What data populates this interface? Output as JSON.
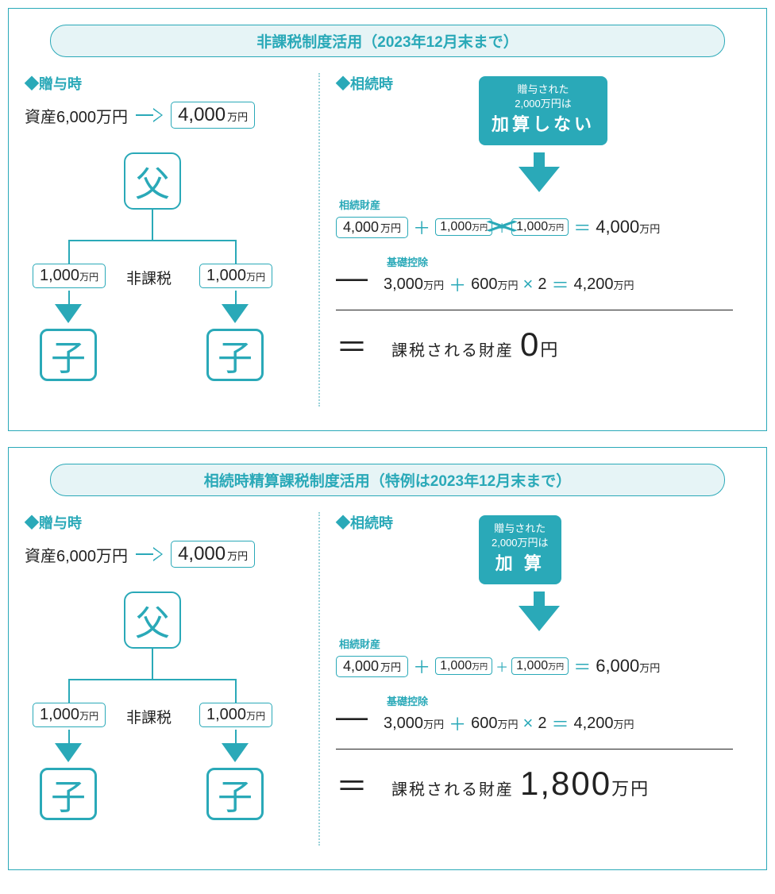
{
  "colors": {
    "accent": "#2aa9b8",
    "bg_light": "#e6f4f6",
    "text": "#222"
  },
  "panels": [
    {
      "title": "非課税制度活用（2023年12月末まで）",
      "left": {
        "heading": "◆贈与時",
        "asset_label": "資産6,000万円",
        "asset_after": "4,000",
        "asset_unit": "万円",
        "father": "父",
        "child": "子",
        "gift_amt": "1,000",
        "gift_unit": "万円",
        "nontax": "非課税"
      },
      "right": {
        "heading": "◆相続時",
        "callout_l1": "贈与された",
        "callout_l2": "2,000万円は",
        "callout_big": "加算しない",
        "sect1": "相続財産",
        "a1": "4,000",
        "a1u": "万円",
        "a2": "1,000",
        "a2u": "万円",
        "a3": "1,000",
        "a3u": "万円",
        "r1": "4,000",
        "r1u": "万円",
        "crossed": true,
        "sect2": "基礎控除",
        "b1": "3,000",
        "b1u": "万円",
        "b2": "600",
        "b2u": "万円",
        "mult": "2",
        "r2": "4,200",
        "r2u": "万円",
        "result_label": "課税される財産",
        "result_num": "0",
        "result_unit": "円"
      }
    },
    {
      "title": "相続時精算課税制度活用（特例は2023年12月末まで）",
      "left": {
        "heading": "◆贈与時",
        "asset_label": "資産6,000万円",
        "asset_after": "4,000",
        "asset_unit": "万円",
        "father": "父",
        "child": "子",
        "gift_amt": "1,000",
        "gift_unit": "万円",
        "nontax": "非課税"
      },
      "right": {
        "heading": "◆相続時",
        "callout_l1": "贈与された",
        "callout_l2": "2,000万円は",
        "callout_big": "加 算",
        "sect1": "相続財産",
        "a1": "4,000",
        "a1u": "万円",
        "a2": "1,000",
        "a2u": "万円",
        "a3": "1,000",
        "a3u": "万円",
        "r1": "6,000",
        "r1u": "万円",
        "crossed": false,
        "sect2": "基礎控除",
        "b1": "3,000",
        "b1u": "万円",
        "b2": "600",
        "b2u": "万円",
        "mult": "2",
        "r2": "4,200",
        "r2u": "万円",
        "result_label": "課税される財産",
        "result_num": "1,800",
        "result_unit": "万円"
      }
    }
  ]
}
